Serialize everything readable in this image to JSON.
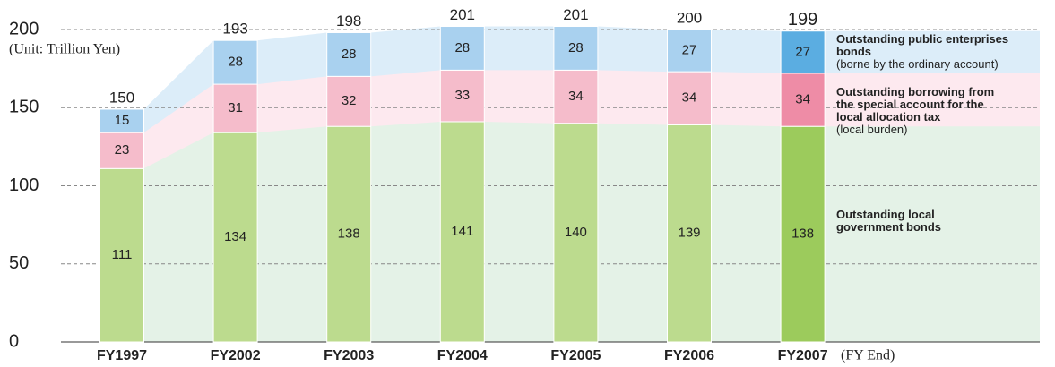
{
  "chart_data": {
    "type": "stacked_bar",
    "unit_label": "(Unit: Trillion Yen)",
    "x_suffix": "(FY End)",
    "categories": [
      "FY1997",
      "FY2002",
      "FY2003",
      "FY2004",
      "FY2005",
      "FY2006",
      "FY2007"
    ],
    "highlight_category": "FY2007",
    "series": [
      {
        "name": "Outstanding local government bonds",
        "color": "#bcdb8e",
        "highlight_color": "#9ccb5c",
        "band_color": "#e4f2e7",
        "values": [
          111,
          134,
          138,
          141,
          140,
          139,
          138
        ]
      },
      {
        "name": "Outstanding borrowing from the special account for the local allocation tax",
        "note": "(local burden)",
        "color": "#f5bccb",
        "highlight_color": "#ee8ca6",
        "band_color": "#fde9ef",
        "values": [
          23,
          31,
          32,
          33,
          34,
          34,
          34
        ]
      },
      {
        "name": "Outstanding public enterprises bonds",
        "note": "(borne by the ordinary account)",
        "color": "#a9d1ef",
        "highlight_color": "#5badE1",
        "band_color": "#dcedf9",
        "values": [
          15,
          28,
          28,
          28,
          28,
          27,
          27
        ]
      }
    ],
    "totals": [
      150,
      193,
      198,
      201,
      201,
      200,
      199
    ],
    "ylim": [
      0,
      200
    ],
    "yticks": [
      0,
      50,
      100,
      150,
      200
    ],
    "grid": true
  }
}
